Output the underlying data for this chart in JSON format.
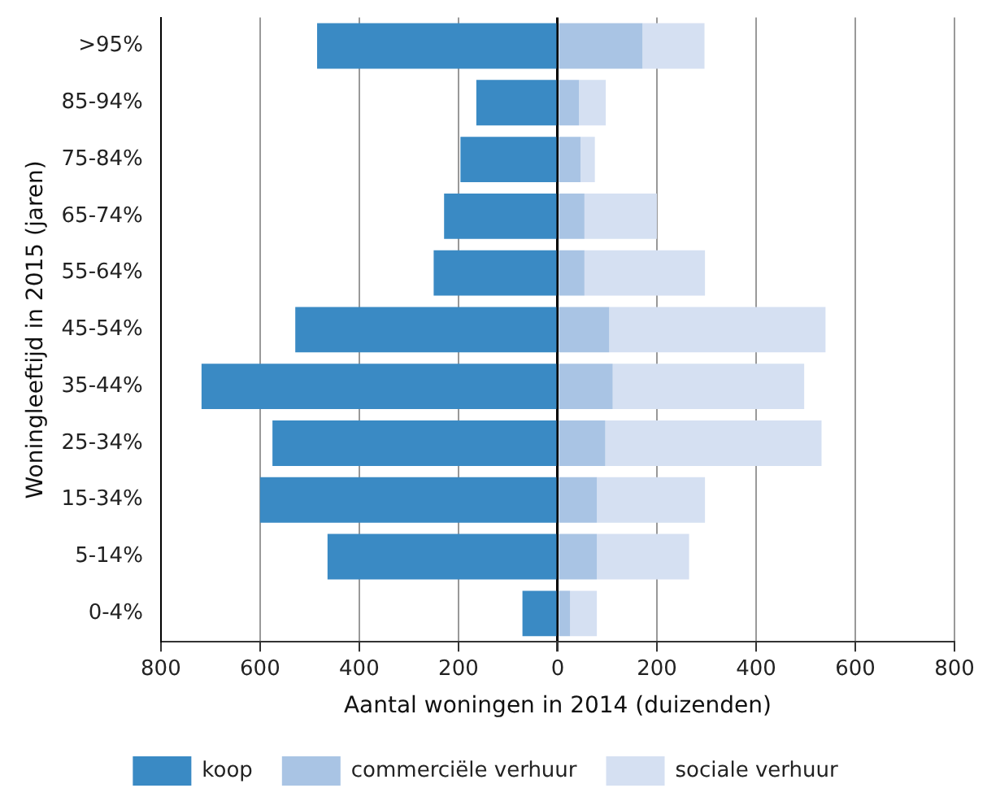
{
  "chart_data": {
    "type": "bar",
    "orientation": "horizontal",
    "stacked": true,
    "xlabel": "Aantal woningen in 2014 (duizenden)",
    "ylabel": "Woningleeftijd in 2015 (jaren)",
    "categories": [
      ">95%",
      "85-94%",
      "75-84%",
      "65-74%",
      "55-64%",
      "45-54%",
      "35-44%",
      "25-34%",
      "15-34%",
      "5-14%",
      "0-4%"
    ],
    "series": [
      {
        "name": "koop",
        "color": "#3a8ac4",
        "values": [
          -485,
          -164,
          -196,
          -229,
          -250,
          -529,
          -718,
          -575,
          -600,
          -464,
          -71
        ]
      },
      {
        "name": "commerciële verhuur",
        "color": "#a9c4e4",
        "values": [
          171,
          43,
          46,
          54,
          54,
          104,
          111,
          96,
          79,
          79,
          25
        ]
      },
      {
        "name": "sociale verhuur",
        "color": "#d5e0f2",
        "values": [
          125,
          54,
          29,
          146,
          243,
          436,
          386,
          436,
          218,
          186,
          54
        ]
      }
    ],
    "xlim": [
      -800,
      800
    ],
    "xticks": [
      {
        "value": -800,
        "label": "800"
      },
      {
        "value": -600,
        "label": "600"
      },
      {
        "value": -400,
        "label": "400"
      },
      {
        "value": -200,
        "label": "200"
      },
      0,
      {
        "value": 200,
        "label": "200"
      },
      {
        "value": 400,
        "label": "400"
      },
      {
        "value": 600,
        "label": "600"
      },
      {
        "value": 800,
        "label": "800"
      }
    ],
    "grid": "x",
    "legend": "bottom"
  }
}
